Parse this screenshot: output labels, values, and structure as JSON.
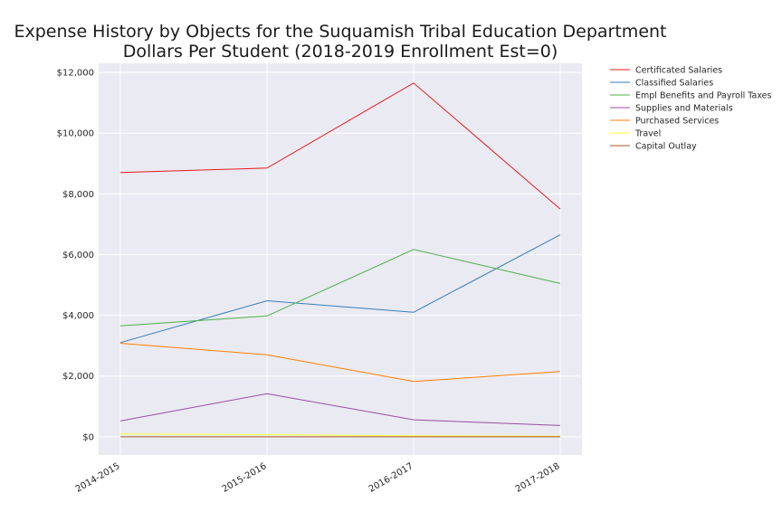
{
  "chart_data": {
    "type": "line",
    "title": "Expense History by Objects for the Suquamish Tribal Education Department",
    "subtitle": "Dollars Per Student (2018-2019 Enrollment Est=0)",
    "xlabel": "",
    "ylabel": "",
    "categories": [
      "2014-2015",
      "2015-2016",
      "2016-2017",
      "2017-2018"
    ],
    "ylim": [
      -600,
      12300
    ],
    "yticks": [
      0,
      2000,
      4000,
      6000,
      8000,
      10000,
      12000
    ],
    "ytick_labels": [
      "$0",
      "$2,000",
      "$4,000",
      "$6,000",
      "$8,000",
      "$10,000",
      "$12,000"
    ],
    "grid": true,
    "legend_position": "outside-right",
    "series": [
      {
        "name": "Certificated Salaries",
        "color": "#e41a1c",
        "values": [
          8700,
          8850,
          11650,
          7500
        ]
      },
      {
        "name": "Classified Salaries",
        "color": "#377eb8",
        "values": [
          3100,
          4480,
          4100,
          6650
        ]
      },
      {
        "name": "Empl Benefits and Payroll Taxes",
        "color": "#4daf4a",
        "values": [
          3650,
          3980,
          6170,
          5050
        ]
      },
      {
        "name": "Supplies and Materials",
        "color": "#984ea3",
        "values": [
          520,
          1420,
          560,
          370
        ]
      },
      {
        "name": "Purchased Services",
        "color": "#ff7f00",
        "values": [
          3080,
          2700,
          1820,
          2150
        ]
      },
      {
        "name": "Travel",
        "color": "#ffff33",
        "values": [
          90,
          70,
          30,
          20
        ]
      },
      {
        "name": "Capital Outlay",
        "color": "#a65628",
        "values": [
          0,
          0,
          0,
          0
        ]
      }
    ]
  }
}
